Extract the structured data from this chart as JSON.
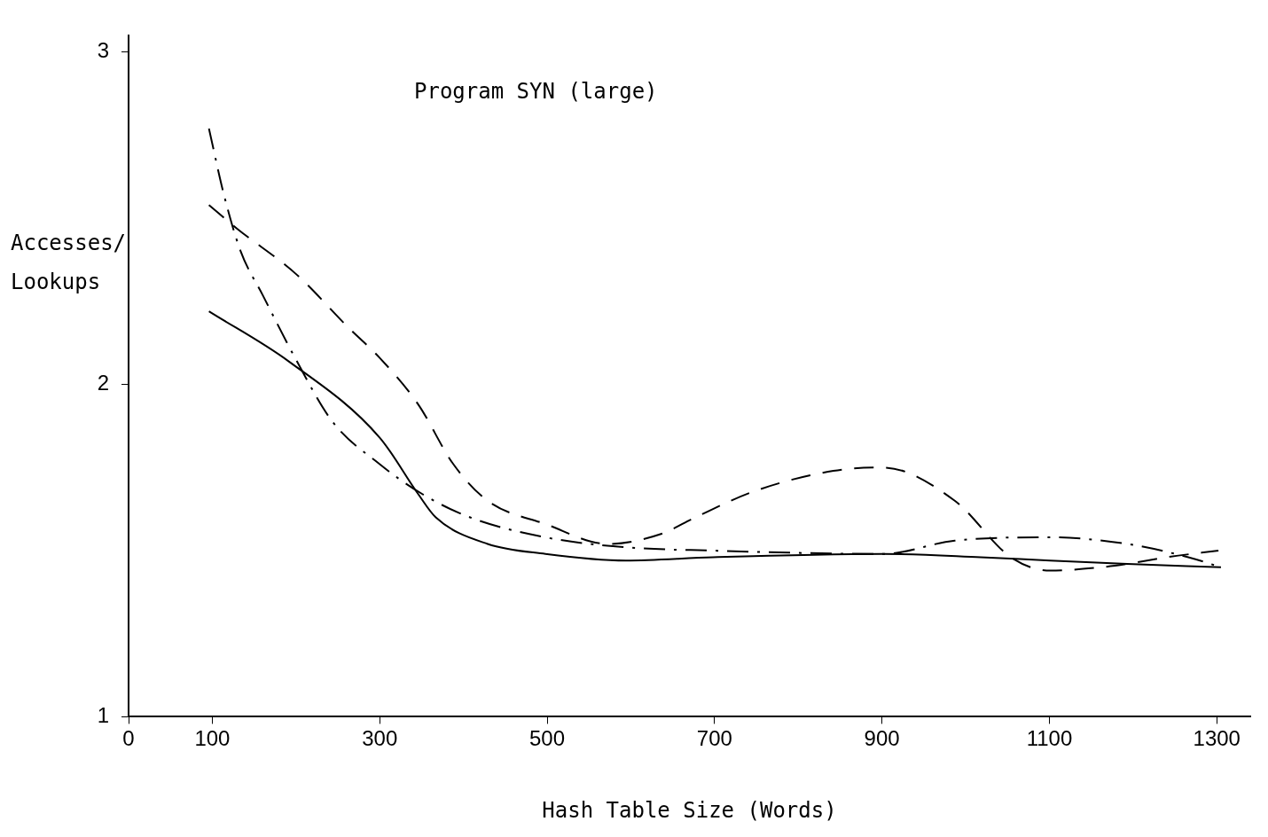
{
  "chart_data": {
    "type": "line",
    "title": "Program SYN (large)",
    "xlabel": "Hash Table Size (Words)",
    "ylabel": "Accesses/Lookups",
    "xlim": [
      0,
      1340
    ],
    "ylim": [
      1,
      3.05
    ],
    "xticks": [
      0,
      100,
      300,
      500,
      700,
      900,
      1100,
      1300
    ],
    "yticks": [
      1,
      2,
      3
    ],
    "grid": false,
    "legend": false,
    "marker": "none",
    "series": [
      {
        "color": "#000000",
        "line_style": "solid",
        "x": [
          96,
          191,
          300,
          346,
          367,
          429,
          498,
          594,
          698,
          901,
          1018,
          1101,
          1193,
          1305
        ],
        "values": [
          2.22,
          2.07,
          1.84,
          1.67,
          1.6,
          1.52,
          1.49,
          1.47,
          1.48,
          1.49,
          1.48,
          1.47,
          1.46,
          1.45
        ]
      },
      {
        "color": "#000000",
        "line_style": "dashed",
        "x": [
          96,
          129,
          201,
          263,
          300,
          346,
          388,
          429,
          498,
          573,
          636,
          677,
          749,
          842,
          901,
          987,
          1054,
          1101,
          1162,
          1193,
          1240,
          1302
        ],
        "values": [
          2.54,
          2.47,
          2.33,
          2.17,
          2.08,
          1.94,
          1.76,
          1.65,
          1.58,
          1.52,
          1.55,
          1.6,
          1.68,
          1.74,
          1.75,
          1.65,
          1.48,
          1.44,
          1.45,
          1.46,
          1.48,
          1.5
        ]
      },
      {
        "color": "#000000",
        "line_style": "dashdot",
        "x": [
          96,
          114,
          134,
          160,
          201,
          243,
          300,
          351,
          408,
          498,
          594,
          698,
          901,
          987,
          1101,
          1193,
          1266,
          1305
        ],
        "values": [
          2.77,
          2.57,
          2.4,
          2.27,
          2.07,
          1.89,
          1.76,
          1.67,
          1.6,
          1.54,
          1.51,
          1.5,
          1.49,
          1.53,
          1.54,
          1.52,
          1.48,
          1.45
        ]
      }
    ]
  }
}
